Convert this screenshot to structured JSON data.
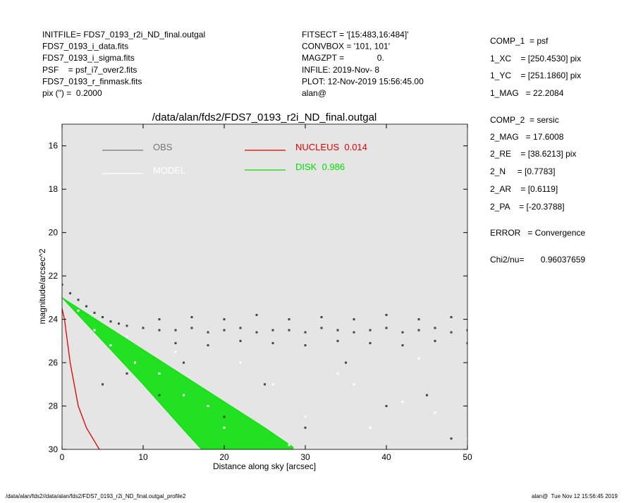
{
  "header": {
    "left": [
      "INITFILE= FDS7_0193_r2i_ND_final.outgal",
      "FDS7_0193_i_data.fits",
      "FDS7_0193_i_sigma.fits",
      "PSF    = psf_i7_over2.fits",
      "FDS7_0193_r_finmask.fits",
      "pix (\") =  0.2000"
    ],
    "middle": [
      "FITSECT = '[15:483,16:484]'",
      "CONVBOX = '101, 101'",
      "MAGZPT =              0.",
      "INFILE: 2019-Nov- 8",
      "PLOT: 12-Nov-2019 15:56:45.00",
      "alan@"
    ],
    "right": [
      "COMP_1  = psf",
      "1_XC    = [250.4530] pix",
      "1_YC    = [251.1860] pix",
      "1_MAG   = 22.2084",
      "COMP_2  = sersic",
      "2_MAG   = 17.6008",
      "2_RE    = [38.6213] pix",
      "2_N     = [0.7783]",
      "2_AR    = [0.6119]",
      "2_PA    = [-20.3788]",
      "ERROR   = Convergence",
      "Chi2/nu=       0.96037659"
    ]
  },
  "footer": {
    "left": "/data/alan/fds2//data/alan/fds2/FDS7_0193_r2i_ND_final.outgal_profile2",
    "right": "alan@  Tue Nov 12 15:56:45 2019"
  },
  "chart_data": {
    "type": "scatter",
    "title": "/data/alan/fds2/FDS7_0193_r2i_ND_final.outgal",
    "x_label": "Distance along sky [arcsec]",
    "y_label": "magnitude/arcsec^2",
    "xlim": [
      0,
      50
    ],
    "ylim": [
      30,
      15
    ],
    "xticks": [
      0,
      10,
      20,
      30,
      40,
      50
    ],
    "yticks": [
      16,
      18,
      20,
      22,
      24,
      26,
      28,
      30
    ],
    "series": [
      {
        "name": "OBS",
        "color": "#444444",
        "x": [
          0,
          1,
          2,
          3,
          4,
          5,
          6,
          7,
          8,
          10,
          12,
          14,
          16,
          18,
          20,
          22,
          24,
          26,
          28,
          30,
          32,
          34,
          36,
          38,
          40,
          42,
          44,
          46,
          48,
          50,
          12,
          16,
          20,
          24,
          28,
          32,
          36,
          40,
          44,
          48,
          14,
          18,
          22,
          26,
          30,
          34,
          38,
          42,
          46,
          50,
          5,
          8,
          12,
          15,
          20,
          25,
          30,
          35,
          40,
          45,
          48
        ],
        "values": [
          22.4,
          22.8,
          23.1,
          23.4,
          23.7,
          23.9,
          24.1,
          24.2,
          24.3,
          24.4,
          24.5,
          24.5,
          24.4,
          24.6,
          24.5,
          24.4,
          24.6,
          24.5,
          24.5,
          24.6,
          24.4,
          24.5,
          24.6,
          24.5,
          24.4,
          24.6,
          24.5,
          24.4,
          24.6,
          24.5,
          24.0,
          23.9,
          24.0,
          23.8,
          24.0,
          23.9,
          24.0,
          23.8,
          24.0,
          23.9,
          25.1,
          25.2,
          25.0,
          25.1,
          25.2,
          25.0,
          25.1,
          25.2,
          25.0,
          25.1,
          27,
          26.5,
          27.5,
          26,
          28.5,
          27,
          29,
          26,
          28,
          27.5,
          29.5
        ]
      },
      {
        "name": "MODEL",
        "color": "#ffffff",
        "x": [
          2,
          4,
          6,
          9,
          12,
          15,
          18,
          22,
          26,
          30,
          34,
          38,
          42,
          46,
          50,
          8,
          14,
          20,
          28,
          36,
          44
        ],
        "values": [
          23.6,
          24.5,
          25.2,
          26,
          26.5,
          27.5,
          28,
          26,
          27,
          28.5,
          26.5,
          29,
          27.8,
          28.3,
          29.5,
          24.8,
          25.5,
          29,
          29.8,
          27,
          25.8
        ]
      },
      {
        "name": "NUCLEUS  0.014",
        "color": "#e00000",
        "x": [
          0,
          0.3,
          1,
          2,
          3,
          4.6
        ],
        "values": [
          23.5,
          24,
          26,
          28,
          29,
          30
        ]
      },
      {
        "name": "DISK  0.986",
        "color": "#00e000",
        "edges": [
          {
            "x": [
              0,
              5,
              10,
              15,
              20,
              25,
              28.5
            ],
            "values": [
              23,
              24.2,
              25.4,
              26.6,
              27.8,
              29,
              29.9
            ]
          },
          {
            "x": [
              0,
              5,
              10,
              15,
              17.2
            ],
            "values": [
              23,
              25,
              27,
              29.1,
              30
            ]
          }
        ]
      }
    ]
  }
}
